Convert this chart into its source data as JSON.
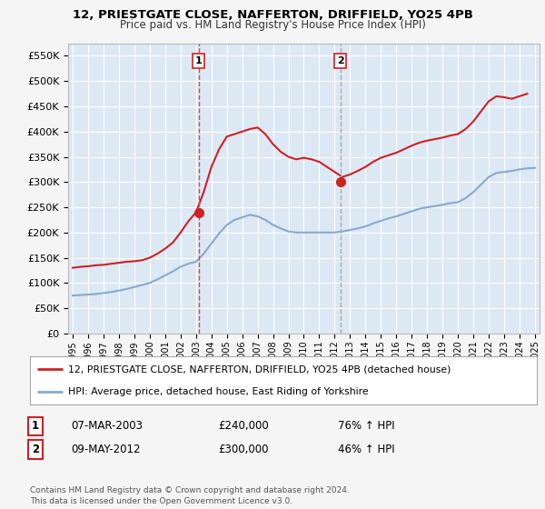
{
  "title": "12, PRIESTGATE CLOSE, NAFFERTON, DRIFFIELD, YO25 4PB",
  "subtitle": "Price paid vs. HM Land Registry's House Price Index (HPI)",
  "ylabel_ticks": [
    "£0",
    "£50K",
    "£100K",
    "£150K",
    "£200K",
    "£250K",
    "£300K",
    "£350K",
    "£400K",
    "£450K",
    "£500K",
    "£550K"
  ],
  "ytick_values": [
    0,
    50000,
    100000,
    150000,
    200000,
    250000,
    300000,
    350000,
    400000,
    450000,
    500000,
    550000
  ],
  "ylim": [
    0,
    575000
  ],
  "xlim_start": 1994.7,
  "xlim_end": 2025.3,
  "background_color": "#f5f5f5",
  "plot_bg_color": "#dde8f5",
  "grid_color": "#ffffff",
  "red_line_color": "#cc2222",
  "blue_line_color": "#88aacc",
  "vline1_color": "#dd4444",
  "vline1_style": "--",
  "vline2_color": "#aaaaaa",
  "vline2_style": "--",
  "transaction1_x": 2003.18,
  "transaction1_y": 240000,
  "transaction2_x": 2012.36,
  "transaction2_y": 300000,
  "legend_line1": "12, PRIESTGATE CLOSE, NAFFERTON, DRIFFIELD, YO25 4PB (detached house)",
  "legend_line2": "HPI: Average price, detached house, East Riding of Yorkshire",
  "table_row1_num": "1",
  "table_row1_date": "07-MAR-2003",
  "table_row1_price": "£240,000",
  "table_row1_hpi": "76% ↑ HPI",
  "table_row2_num": "2",
  "table_row2_date": "09-MAY-2012",
  "table_row2_price": "£300,000",
  "table_row2_hpi": "46% ↑ HPI",
  "footer": "Contains HM Land Registry data © Crown copyright and database right 2024.\nThis data is licensed under the Open Government Licence v3.0.",
  "xtick_years": [
    1995,
    1996,
    1997,
    1998,
    1999,
    2000,
    2001,
    2002,
    2003,
    2004,
    2005,
    2006,
    2007,
    2008,
    2009,
    2010,
    2011,
    2012,
    2013,
    2014,
    2015,
    2016,
    2017,
    2018,
    2019,
    2020,
    2021,
    2022,
    2023,
    2024,
    2025
  ],
  "red_years": [
    1995.0,
    1995.5,
    1996.0,
    1996.5,
    1997.0,
    1997.5,
    1998.0,
    1998.5,
    1999.0,
    1999.5,
    2000.0,
    2000.5,
    2001.0,
    2001.5,
    2002.0,
    2002.5,
    2003.0,
    2003.5,
    2004.0,
    2004.5,
    2005.0,
    2005.5,
    2006.0,
    2006.5,
    2007.0,
    2007.5,
    2008.0,
    2008.5,
    2009.0,
    2009.5,
    2010.0,
    2010.5,
    2011.0,
    2011.5,
    2012.0,
    2012.5,
    2013.0,
    2013.5,
    2014.0,
    2014.5,
    2015.0,
    2015.5,
    2016.0,
    2016.5,
    2017.0,
    2017.5,
    2018.0,
    2018.5,
    2019.0,
    2019.5,
    2020.0,
    2020.5,
    2021.0,
    2021.5,
    2022.0,
    2022.5,
    2023.0,
    2023.5,
    2024.0,
    2024.5
  ],
  "red_vals": [
    130000,
    132000,
    133000,
    135000,
    136000,
    138000,
    140000,
    142000,
    143000,
    145000,
    150000,
    158000,
    168000,
    180000,
    200000,
    222000,
    240000,
    280000,
    330000,
    365000,
    390000,
    395000,
    400000,
    405000,
    408000,
    395000,
    375000,
    360000,
    350000,
    345000,
    348000,
    345000,
    340000,
    330000,
    320000,
    310000,
    315000,
    322000,
    330000,
    340000,
    348000,
    353000,
    358000,
    365000,
    372000,
    378000,
    382000,
    385000,
    388000,
    392000,
    395000,
    405000,
    420000,
    440000,
    460000,
    470000,
    468000,
    465000,
    470000,
    475000
  ],
  "blue_years": [
    1995.0,
    1995.5,
    1996.0,
    1996.5,
    1997.0,
    1997.5,
    1998.0,
    1998.5,
    1999.0,
    1999.5,
    2000.0,
    2000.5,
    2001.0,
    2001.5,
    2002.0,
    2002.5,
    2003.0,
    2003.5,
    2004.0,
    2004.5,
    2005.0,
    2005.5,
    2006.0,
    2006.5,
    2007.0,
    2007.5,
    2008.0,
    2008.5,
    2009.0,
    2009.5,
    2010.0,
    2010.5,
    2011.0,
    2011.5,
    2012.0,
    2012.5,
    2013.0,
    2013.5,
    2014.0,
    2014.5,
    2015.0,
    2015.5,
    2016.0,
    2016.5,
    2017.0,
    2017.5,
    2018.0,
    2018.5,
    2019.0,
    2019.5,
    2020.0,
    2020.5,
    2021.0,
    2021.5,
    2022.0,
    2022.5,
    2023.0,
    2023.5,
    2024.0,
    2024.5,
    2025.0
  ],
  "blue_vals": [
    75000,
    76000,
    77000,
    78000,
    80000,
    82000,
    85000,
    88000,
    92000,
    96000,
    100000,
    107000,
    115000,
    123000,
    132000,
    138000,
    142000,
    158000,
    178000,
    198000,
    215000,
    225000,
    230000,
    235000,
    232000,
    225000,
    215000,
    208000,
    202000,
    200000,
    200000,
    200000,
    200000,
    200000,
    200000,
    202000,
    205000,
    208000,
    212000,
    218000,
    223000,
    228000,
    232000,
    237000,
    242000,
    247000,
    250000,
    252000,
    255000,
    258000,
    260000,
    268000,
    280000,
    295000,
    310000,
    318000,
    320000,
    322000,
    325000,
    327000,
    328000
  ]
}
